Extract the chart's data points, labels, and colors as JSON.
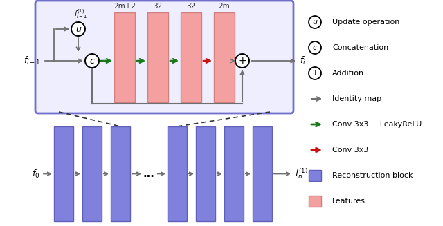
{
  "bg_color": "#ffffff",
  "blue_box_edge": "#7070cc",
  "blue_box_fill": "#eeeeff",
  "pink_color": "#f4a0a0",
  "pink_edge": "#d08080",
  "blue_block_color": "#8080dd",
  "blue_block_edge": "#6060bb",
  "gray": "#707070",
  "green": "#1a7a1a",
  "red": "#cc1010",
  "dark": "#333333",
  "top_labels": [
    "2m+2",
    "32",
    "32",
    "2m"
  ],
  "legend_items": [
    [
      "circle_u",
      "Update operation"
    ],
    [
      "circle_c",
      "Concatenation"
    ],
    [
      "circle_p",
      "Addition"
    ],
    [
      "gray_arrow",
      "Identity map"
    ],
    [
      "green_arrow",
      "Conv 3x3 + LeakyReLU"
    ],
    [
      "red_arrow",
      "Conv 3x3"
    ],
    [
      "blue_square",
      "Reconstruction block"
    ],
    [
      "pink_square",
      "Features"
    ]
  ]
}
